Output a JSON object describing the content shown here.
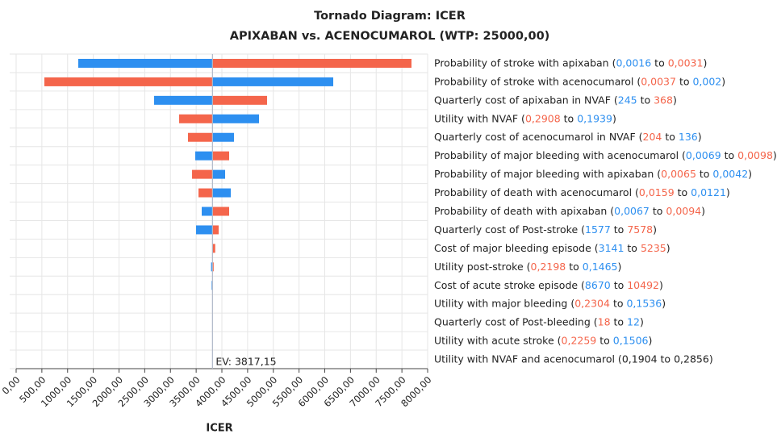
{
  "chart_data": {
    "type": "tornado",
    "title": "Tornado Diagram: ICER",
    "subtitle": "APIXABAN vs. ACENOCUMAROL (WTP: 25000,00)",
    "x_label": "ICER",
    "ev": 3817.15,
    "ev_label": "EV: 3817,15",
    "xlim": [
      0,
      8000
    ],
    "xticks": [
      {
        "value": 0,
        "label": "0,00"
      },
      {
        "value": 500,
        "label": "500,00"
      },
      {
        "value": 1000,
        "label": "1000,00"
      },
      {
        "value": 1500,
        "label": "1500,00"
      },
      {
        "value": 2000,
        "label": "2000,00"
      },
      {
        "value": 2500,
        "label": "2500,00"
      },
      {
        "value": 3000,
        "label": "3000,00"
      },
      {
        "value": 3500,
        "label": "3500,00"
      },
      {
        "value": 4000,
        "label": "4000,00"
      },
      {
        "value": 4500,
        "label": "4500,00"
      },
      {
        "value": 5000,
        "label": "5000,00"
      },
      {
        "value": 5500,
        "label": "5500,00"
      },
      {
        "value": 6000,
        "label": "6000,00"
      },
      {
        "value": 6500,
        "label": "6500,00"
      },
      {
        "value": 7000,
        "label": "7000,00"
      },
      {
        "value": 7500,
        "label": "7500,00"
      },
      {
        "value": 8000,
        "label": "8000,00"
      }
    ],
    "grid": true,
    "categories": [
      [
        "Probability of stroke with apixaban (",
        "0,0016",
        " to ",
        "0,0031",
        ")"
      ],
      [
        "Probability of stroke with acenocumarol (",
        "0,0037",
        " to ",
        "0,002",
        ")"
      ],
      [
        "Quarterly cost of apixaban in NVAF (",
        "245",
        " to ",
        "368",
        ")"
      ],
      [
        "Utility with NVAF (",
        "0,2908",
        " to ",
        "0,1939",
        ")"
      ],
      [
        "Quarterly cost of acenocumarol in NVAF (",
        "204",
        " to ",
        "136",
        ")"
      ],
      [
        "Probability of major bleeding with acenocumarol (",
        "0,0069",
        " to ",
        "0,0098",
        ")"
      ],
      [
        "Probability of major bleeding with apixaban (",
        "0,0065",
        " to ",
        "0,0042",
        ")"
      ],
      [
        "Probability of death with acenocumarol (",
        "0,0159",
        " to ",
        "0,0121",
        ")"
      ],
      [
        "Probability of death with apixaban (",
        "0,0067",
        " to ",
        "0,0094",
        ")"
      ],
      [
        "Quarterly cost of Post-stroke (",
        "1577",
        " to ",
        "7578",
        ")"
      ],
      [
        "Cost of major bleeding episode (",
        "3141",
        " to ",
        "5235",
        ")"
      ],
      [
        "Utility post-stroke (",
        "0,2198",
        " to ",
        "0,1465",
        ")"
      ],
      [
        "Cost of acute stroke episode (",
        "8670",
        " to ",
        "10492",
        ")"
      ],
      [
        "Utility with major bleeding (",
        "0,2304",
        " to ",
        "0,1536",
        ")"
      ],
      [
        "Quarterly cost of Post-bleeding (",
        "18",
        " to ",
        "12",
        ")"
      ],
      [
        "Utility with acute stroke (",
        "0,2259",
        " to ",
        "0,1506",
        ")"
      ],
      [
        "Utility with NVAF and acenocumarol (",
        "0,1904",
        " to ",
        "0,2856",
        ")"
      ]
    ],
    "label_colors": [
      [
        "#2d8ff0",
        "#f4654b"
      ],
      [
        "#f4654b",
        "#2d8ff0"
      ],
      [
        "#2d8ff0",
        "#f4654b"
      ],
      [
        "#f4654b",
        "#2d8ff0"
      ],
      [
        "#f4654b",
        "#2d8ff0"
      ],
      [
        "#2d8ff0",
        "#f4654b"
      ],
      [
        "#f4654b",
        "#2d8ff0"
      ],
      [
        "#f4654b",
        "#2d8ff0"
      ],
      [
        "#2d8ff0",
        "#f4654b"
      ],
      [
        "#2d8ff0",
        "#f4654b"
      ],
      [
        "#2d8ff0",
        "#f4654b"
      ],
      [
        "#f4654b",
        "#2d8ff0"
      ],
      [
        "#2d8ff0",
        "#f4654b"
      ],
      [
        "#f4654b",
        "#2d8ff0"
      ],
      [
        "#f4654b",
        "#2d8ff0"
      ],
      [
        "#f4654b",
        "#2d8ff0"
      ],
      [
        "#222222",
        "#222222"
      ]
    ],
    "series": [
      {
        "color": "#2d8ff0",
        "values": [
          1208,
          6165,
          2682,
          4722,
          4235,
          3482,
          4063,
          4173,
          3608,
          3498,
          3817.15,
          3790,
          3800,
          3817.15,
          3817.15,
          3817.15,
          3817.15
        ]
      },
      {
        "color": "#f4654b",
        "values": [
          7686,
          549,
          4878,
          3169,
          3341,
          4141,
          3420,
          3545,
          4141,
          3937,
          3870,
          3840,
          3817.15,
          3817.15,
          3817.15,
          3817.15,
          3817.15
        ]
      }
    ]
  }
}
